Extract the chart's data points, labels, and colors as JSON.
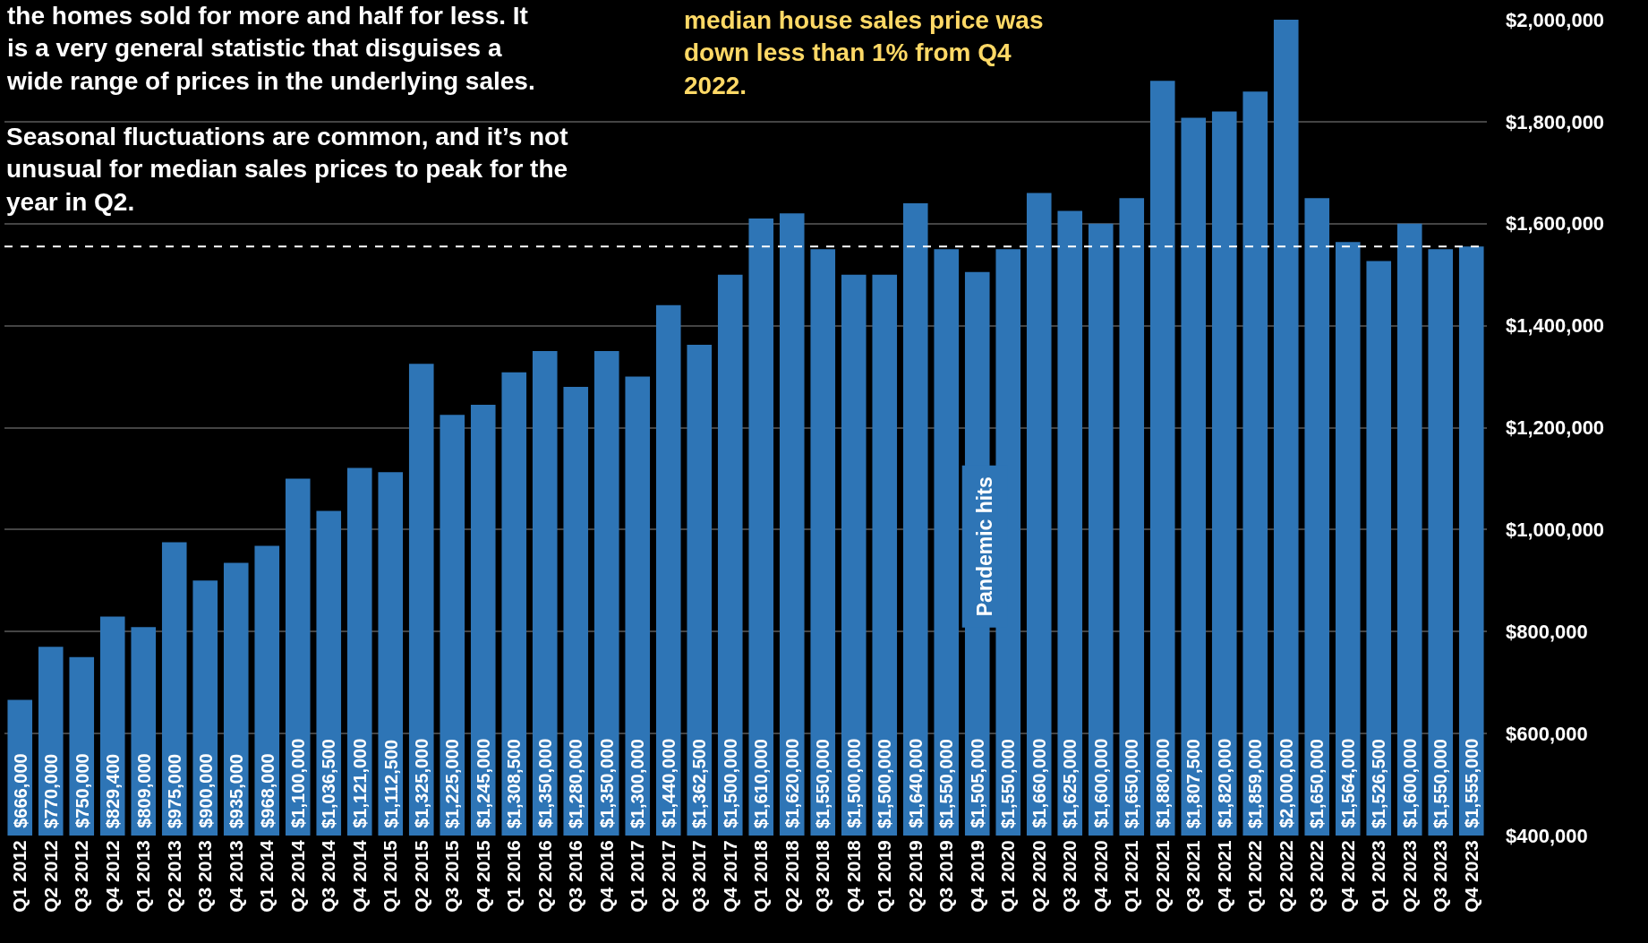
{
  "chart_data": {
    "type": "bar",
    "categories": [
      "Q1 2012",
      "Q2 2012",
      "Q3 2012",
      "Q4 2012",
      "Q1 2013",
      "Q2 2013",
      "Q3 2013",
      "Q4 2013",
      "Q1 2014",
      "Q2 2014",
      "Q3 2014",
      "Q4 2014",
      "Q1 2015",
      "Q2 2015",
      "Q3 2015",
      "Q4 2015",
      "Q1 2016",
      "Q2 2016",
      "Q3 2016",
      "Q4 2016",
      "Q1 2017",
      "Q2 2017",
      "Q3 2017",
      "Q4 2017",
      "Q1 2018",
      "Q2 2018",
      "Q3 2018",
      "Q4 2018",
      "Q1 2019",
      "Q2 2019",
      "Q3 2019",
      "Q4 2019",
      "Q1 2020",
      "Q2 2020",
      "Q3 2020",
      "Q4 2020",
      "Q1 2021",
      "Q2 2021",
      "Q3 2021",
      "Q4 2021",
      "Q1 2022",
      "Q2 2022",
      "Q3 2022",
      "Q4 2022",
      "Q1 2023",
      "Q2 2023",
      "Q3 2023",
      "Q4 2023"
    ],
    "values": [
      666000,
      770000,
      750000,
      829400,
      809000,
      975000,
      900000,
      935000,
      968000,
      1100000,
      1036500,
      1121000,
      1112500,
      1325000,
      1225000,
      1245000,
      1308500,
      1350000,
      1280000,
      1350000,
      1300000,
      1440000,
      1362500,
      1500000,
      1610000,
      1620000,
      1550000,
      1500000,
      1500000,
      1640000,
      1550000,
      1505000,
      1550000,
      1660000,
      1625000,
      1600000,
      1650000,
      1880000,
      1807500,
      1820000,
      1859000,
      2000000,
      1650000,
      1564000,
      1526500,
      1600000,
      1550000,
      1555000
    ],
    "value_labels": [
      "$666,000",
      "$770,000",
      "$750,000",
      "$829,400",
      "$809,000",
      "$975,000",
      "$900,000",
      "$935,000",
      "$968,000",
      "$1,100,000",
      "$1,036,500",
      "$1,121,000",
      "$1,112,500",
      "$1,325,000",
      "$1,225,000",
      "$1,245,000",
      "$1,308,500",
      "$1,350,000",
      "$1,280,000",
      "$1,350,000",
      "$1,300,000",
      "$1,440,000",
      "$1,362,500",
      "$1,500,000",
      "$1,610,000",
      "$1,620,000",
      "$1,550,000",
      "$1,500,000",
      "$1,500,000",
      "$1,640,000",
      "$1,550,000",
      "$1,505,000",
      "$1,550,000",
      "$1,660,000",
      "$1,625,000",
      "$1,600,000",
      "$1,650,000",
      "$1,880,000",
      "$1,807,500",
      "$1,820,000",
      "$1,859,000",
      "$2,000,000",
      "$1,650,000",
      "$1,564,000",
      "$1,526,500",
      "$1,600,000",
      "$1,550,000",
      "$1,555,000"
    ],
    "color": "#2e75b6",
    "ylim": [
      400000,
      2000000
    ],
    "yticks": [
      {
        "value": 400000,
        "label": "$400,000"
      },
      {
        "value": 600000,
        "label": "$600,000"
      },
      {
        "value": 800000,
        "label": "$800,000"
      },
      {
        "value": 1000000,
        "label": "$1,000,000"
      },
      {
        "value": 1200000,
        "label": "$1,200,000"
      },
      {
        "value": 1400000,
        "label": "$1,400,000"
      },
      {
        "value": 1600000,
        "label": "$1,600,000"
      },
      {
        "value": 1800000,
        "label": "$1,800,000"
      },
      {
        "value": 2000000,
        "label": "$2,000,000"
      }
    ],
    "grid": "y",
    "ref_lines": [
      {
        "axis": "y",
        "value": 1555000,
        "color": "#ffffff",
        "line_style": "dashed"
      }
    ],
    "annotations": [
      "the homes sold for more and half for less. It is a very general statistic that disguises a wide range of prices in the underlying sales.",
      "Seasonal fluctuations are common, and it’s not unusual for median sales prices to peak for the year in Q2.",
      "median house sales price was down less than 1% from Q4 2022.",
      "Pandemic hits"
    ]
  }
}
